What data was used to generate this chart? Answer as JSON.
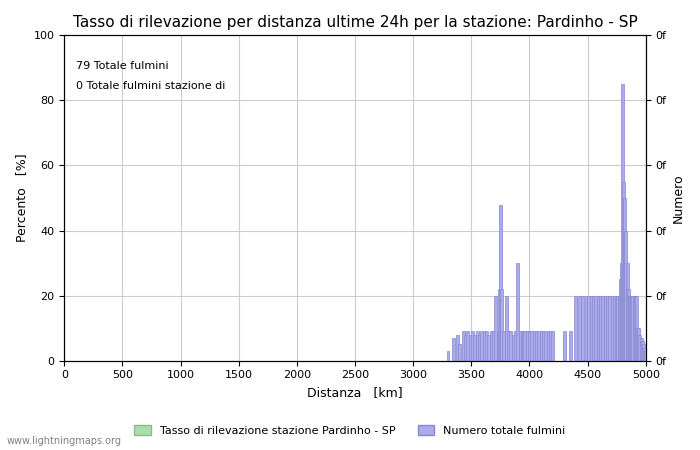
{
  "title": "Tasso di rilevazione per distanza ultime 24h per la stazione: Pardinho - SP",
  "xlabel": "Distanza   [km]",
  "ylabel_left": "Percento   [%]",
  "ylabel_right": "Numero",
  "annotation_line1": "79 Totale fulmini",
  "annotation_line2": "0 Totale fulmini stazione di",
  "watermark": "www.lightningmaps.org",
  "legend_label1": "Tasso di rilevazione stazione Pardinho - SP",
  "legend_label2": "Numero totale fulmini",
  "xlim": [
    0,
    5000
  ],
  "ylim": [
    0,
    100
  ],
  "xticks": [
    0,
    500,
    1000,
    1500,
    2000,
    2500,
    3000,
    3500,
    4000,
    4500,
    5000
  ],
  "yticks_left": [
    0,
    20,
    40,
    60,
    80,
    100
  ],
  "yticks_right_labels": [
    "0f",
    "0f",
    "0f",
    "0f",
    "0f",
    "0f"
  ],
  "bar_color": "#aaaaee",
  "bar_edge_color": "#8888cc",
  "green_color": "#aaddaa",
  "bg_color": "#ffffff",
  "grid_color": "#cccccc",
  "title_fontsize": 11,
  "axis_fontsize": 9,
  "tick_fontsize": 8,
  "distances": [
    3300,
    3350,
    3380,
    3400,
    3430,
    3450,
    3470,
    3490,
    3510,
    3530,
    3550,
    3570,
    3590,
    3610,
    3630,
    3650,
    3670,
    3690,
    3710,
    3730,
    3740,
    3750,
    3760,
    3780,
    3800,
    3820,
    3840,
    3860,
    3880,
    3900,
    3920,
    3940,
    3950,
    3960,
    3980,
    4000,
    4020,
    4040,
    4060,
    4080,
    4100,
    4120,
    4140,
    4160,
    4180,
    4200,
    4300,
    4350,
    4400,
    4430,
    4460,
    4490,
    4510,
    4530,
    4550,
    4570,
    4590,
    4610,
    4630,
    4650,
    4670,
    4690,
    4710,
    4730,
    4750,
    4760,
    4770,
    4780,
    4790,
    4800,
    4810,
    4820,
    4830,
    4840,
    4850,
    4860,
    4870,
    4880,
    4890,
    4900,
    4910,
    4920,
    4930,
    4940,
    4950,
    4960,
    4970,
    4980,
    4990,
    5000
  ],
  "values": [
    3,
    7,
    8,
    5,
    9,
    8,
    9,
    8,
    9,
    8,
    9,
    8,
    9,
    9,
    9,
    8,
    9,
    9,
    20,
    9,
    22,
    48,
    22,
    9,
    20,
    9,
    9,
    8,
    9,
    30,
    9,
    9,
    9,
    9,
    9,
    9,
    9,
    9,
    9,
    9,
    9,
    9,
    9,
    9,
    9,
    9,
    9,
    9,
    20,
    20,
    20,
    20,
    20,
    20,
    20,
    20,
    20,
    20,
    20,
    20,
    20,
    20,
    20,
    20,
    20,
    20,
    20,
    25,
    30,
    85,
    55,
    50,
    40,
    30,
    22,
    20,
    20,
    20,
    20,
    20,
    20,
    20,
    10,
    10,
    8,
    7,
    6,
    5,
    4,
    3
  ]
}
